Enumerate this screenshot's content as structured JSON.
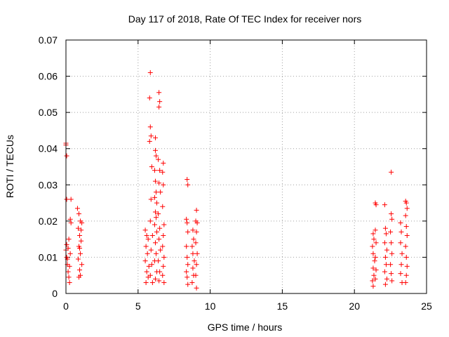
{
  "chart_data": {
    "type": "scatter",
    "title": "Day 117 of 2018, Rate Of TEC Index for receiver nors",
    "xlabel": "GPS time / hours",
    "ylabel": "ROTI / TECUs",
    "xlim": [
      0,
      25
    ],
    "ylim": [
      0,
      0.07
    ],
    "xticks": [
      0,
      5,
      10,
      15,
      20,
      25
    ],
    "xtick_labels": [
      "0",
      "5",
      "10",
      "15",
      "20",
      "25"
    ],
    "yticks": [
      0,
      0.01,
      0.02,
      0.03,
      0.04,
      0.05,
      0.06,
      0.07
    ],
    "ytick_labels": [
      "0",
      "0.01",
      "0.02",
      "0.03",
      "0.04",
      "0.05",
      "0.06",
      "0.07"
    ],
    "grid": true,
    "marker": "+",
    "color": "#ff0000",
    "series": [
      {
        "name": "ROTI",
        "points": [
          [
            0.0,
            0.041
          ],
          [
            0.0,
            0.0415
          ],
          [
            0.05,
            0.038
          ],
          [
            0.05,
            0.026
          ],
          [
            0.35,
            0.026
          ],
          [
            0.3,
            0.0205
          ],
          [
            0.35,
            0.0195
          ],
          [
            0.0,
            0.012
          ],
          [
            0.05,
            0.01
          ],
          [
            0.1,
            0.008
          ],
          [
            0.15,
            0.006
          ],
          [
            0.2,
            0.0045
          ],
          [
            0.25,
            0.003
          ],
          [
            0.05,
            0.0135
          ],
          [
            0.2,
            0.015
          ],
          [
            0.1,
            0.0095
          ],
          [
            0.3,
            0.011
          ],
          [
            0.15,
            0.0125
          ],
          [
            0.25,
            0.0075
          ],
          [
            0.8,
            0.0235
          ],
          [
            0.9,
            0.022
          ],
          [
            1.0,
            0.02
          ],
          [
            1.1,
            0.0195
          ],
          [
            0.85,
            0.018
          ],
          [
            0.95,
            0.016
          ],
          [
            1.05,
            0.0145
          ],
          [
            0.9,
            0.013
          ],
          [
            1.0,
            0.011
          ],
          [
            0.85,
            0.0095
          ],
          [
            1.1,
            0.008
          ],
          [
            0.95,
            0.0065
          ],
          [
            1.0,
            0.005
          ],
          [
            0.9,
            0.0045
          ],
          [
            1.05,
            0.0175
          ],
          [
            0.95,
            0.0125
          ],
          [
            5.5,
            0.0175
          ],
          [
            5.6,
            0.016
          ],
          [
            5.7,
            0.015
          ],
          [
            5.55,
            0.013
          ],
          [
            5.65,
            0.011
          ],
          [
            5.5,
            0.009
          ],
          [
            5.75,
            0.0075
          ],
          [
            5.6,
            0.006
          ],
          [
            5.7,
            0.0045
          ],
          [
            5.55,
            0.003
          ],
          [
            5.85,
            0.061
          ],
          [
            5.8,
            0.054
          ],
          [
            5.85,
            0.046
          ],
          [
            5.9,
            0.0435
          ],
          [
            5.8,
            0.042
          ],
          [
            5.95,
            0.035
          ],
          [
            5.9,
            0.026
          ],
          [
            5.85,
            0.02
          ],
          [
            6.0,
            0.016
          ],
          [
            5.9,
            0.012
          ],
          [
            5.95,
            0.008
          ],
          [
            5.85,
            0.005
          ],
          [
            6.0,
            0.003
          ],
          [
            6.2,
            0.043
          ],
          [
            6.2,
            0.0395
          ],
          [
            6.25,
            0.038
          ],
          [
            6.15,
            0.034
          ],
          [
            6.2,
            0.031
          ],
          [
            6.25,
            0.028
          ],
          [
            6.15,
            0.0265
          ],
          [
            6.3,
            0.025
          ],
          [
            6.2,
            0.0225
          ],
          [
            6.25,
            0.021
          ],
          [
            6.15,
            0.019
          ],
          [
            6.3,
            0.017
          ],
          [
            6.2,
            0.014
          ],
          [
            6.25,
            0.011
          ],
          [
            6.15,
            0.009
          ],
          [
            6.3,
            0.006
          ],
          [
            6.2,
            0.004
          ],
          [
            6.45,
            0.0555
          ],
          [
            6.5,
            0.053
          ],
          [
            6.45,
            0.0515
          ],
          [
            6.4,
            0.037
          ],
          [
            6.5,
            0.034
          ],
          [
            6.45,
            0.0305
          ],
          [
            6.55,
            0.028
          ],
          [
            6.4,
            0.022
          ],
          [
            6.5,
            0.018
          ],
          [
            6.45,
            0.015
          ],
          [
            6.55,
            0.012
          ],
          [
            6.4,
            0.009
          ],
          [
            6.5,
            0.006
          ],
          [
            6.45,
            0.0035
          ],
          [
            6.75,
            0.036
          ],
          [
            6.7,
            0.0335
          ],
          [
            6.75,
            0.03
          ],
          [
            6.7,
            0.024
          ],
          [
            6.8,
            0.019
          ],
          [
            6.75,
            0.016
          ],
          [
            6.7,
            0.013
          ],
          [
            6.8,
            0.01
          ],
          [
            6.75,
            0.0075
          ],
          [
            6.7,
            0.005
          ],
          [
            6.8,
            0.003
          ],
          [
            8.4,
            0.0315
          ],
          [
            8.45,
            0.03
          ],
          [
            8.35,
            0.0205
          ],
          [
            8.4,
            0.0195
          ],
          [
            8.45,
            0.017
          ],
          [
            8.35,
            0.013
          ],
          [
            8.4,
            0.01
          ],
          [
            8.45,
            0.008
          ],
          [
            8.35,
            0.006
          ],
          [
            8.4,
            0.0045
          ],
          [
            8.45,
            0.0025
          ],
          [
            8.8,
            0.0175
          ],
          [
            8.85,
            0.015
          ],
          [
            8.75,
            0.013
          ],
          [
            8.8,
            0.011
          ],
          [
            8.9,
            0.009
          ],
          [
            8.8,
            0.007
          ],
          [
            8.85,
            0.005
          ],
          [
            8.75,
            0.003
          ],
          [
            9.05,
            0.023
          ],
          [
            9.0,
            0.02
          ],
          [
            9.1,
            0.0195
          ],
          [
            9.05,
            0.017
          ],
          [
            9.0,
            0.014
          ],
          [
            9.1,
            0.011
          ],
          [
            9.05,
            0.008
          ],
          [
            9.0,
            0.005
          ],
          [
            9.05,
            0.0015
          ],
          [
            21.3,
            0.0165
          ],
          [
            21.35,
            0.015
          ],
          [
            21.25,
            0.013
          ],
          [
            21.3,
            0.011
          ],
          [
            21.4,
            0.009
          ],
          [
            21.3,
            0.007
          ],
          [
            21.35,
            0.005
          ],
          [
            21.25,
            0.0035
          ],
          [
            21.3,
            0.002
          ],
          [
            21.45,
            0.025
          ],
          [
            21.5,
            0.0245
          ],
          [
            21.45,
            0.0175
          ],
          [
            21.5,
            0.014
          ],
          [
            21.45,
            0.01
          ],
          [
            21.5,
            0.0065
          ],
          [
            21.45,
            0.004
          ],
          [
            22.1,
            0.0245
          ],
          [
            22.15,
            0.018
          ],
          [
            22.2,
            0.0165
          ],
          [
            22.1,
            0.014
          ],
          [
            22.25,
            0.012
          ],
          [
            22.15,
            0.01
          ],
          [
            22.2,
            0.008
          ],
          [
            22.1,
            0.006
          ],
          [
            22.25,
            0.004
          ],
          [
            22.15,
            0.0025
          ],
          [
            22.55,
            0.0335
          ],
          [
            22.55,
            0.022
          ],
          [
            22.6,
            0.0205
          ],
          [
            22.5,
            0.017
          ],
          [
            22.55,
            0.014
          ],
          [
            22.6,
            0.011
          ],
          [
            22.5,
            0.008
          ],
          [
            22.55,
            0.0055
          ],
          [
            22.6,
            0.0035
          ],
          [
            23.2,
            0.0195
          ],
          [
            23.25,
            0.017
          ],
          [
            23.2,
            0.014
          ],
          [
            23.3,
            0.011
          ],
          [
            23.25,
            0.008
          ],
          [
            23.2,
            0.0055
          ],
          [
            23.3,
            0.003
          ],
          [
            23.55,
            0.0255
          ],
          [
            23.6,
            0.025
          ],
          [
            23.65,
            0.0235
          ],
          [
            23.55,
            0.0215
          ],
          [
            23.6,
            0.0185
          ],
          [
            23.65,
            0.016
          ],
          [
            23.55,
            0.013
          ],
          [
            23.6,
            0.01
          ],
          [
            23.65,
            0.0075
          ],
          [
            23.6,
            0.005
          ],
          [
            23.55,
            0.003
          ]
        ]
      }
    ]
  }
}
